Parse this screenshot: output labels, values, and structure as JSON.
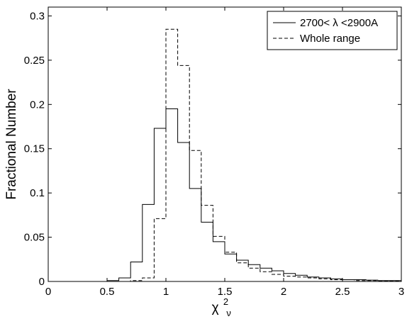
{
  "chart_data": {
    "type": "histogram",
    "title": "",
    "xlabel": "χ",
    "xlabel_sup": "2",
    "xlabel_sub": "ν",
    "ylabel": "Fractional Number",
    "xlim": [
      0,
      3
    ],
    "ylim": [
      0,
      0.31
    ],
    "xticks": [
      "0",
      "0.5",
      "1",
      "1.5",
      "2",
      "2.5",
      "3"
    ],
    "yticks": [
      "0",
      "0.05",
      "0.1",
      "0.15",
      "0.2",
      "0.25",
      "0.3"
    ],
    "grid": false,
    "legend_position": "top-right",
    "bin_edges": [
      0.1,
      0.2,
      0.3,
      0.4,
      0.5,
      0.6,
      0.7,
      0.8,
      0.9,
      1.0,
      1.1,
      1.2,
      1.3,
      1.4,
      1.5,
      1.6,
      1.7,
      1.8,
      1.9,
      2.0,
      2.1,
      2.2,
      2.3,
      2.4,
      2.5,
      2.6,
      2.7,
      2.8,
      2.9,
      3.0
    ],
    "series": [
      {
        "name": "2700< λ <2900A",
        "line_style": "solid",
        "color": "#000000",
        "values": [
          0.0,
          0.0,
          0.0,
          0.0,
          0.001,
          0.004,
          0.022,
          0.087,
          0.173,
          0.195,
          0.157,
          0.105,
          0.067,
          0.045,
          0.031,
          0.024,
          0.019,
          0.015,
          0.012,
          0.009,
          0.007,
          0.005,
          0.004,
          0.003,
          0.002,
          0.002,
          0.0015,
          0.001,
          0.001
        ]
      },
      {
        "name": "Whole range",
        "line_style": "dashed",
        "color": "#000000",
        "values": [
          0.0,
          0.0,
          0.0,
          0.0,
          0.0,
          0.0,
          0.001,
          0.004,
          0.071,
          0.285,
          0.244,
          0.148,
          0.086,
          0.051,
          0.033,
          0.021,
          0.015,
          0.011,
          0.008,
          0.006,
          0.005,
          0.004,
          0.003,
          0.002,
          0.002,
          0.001,
          0.001,
          0.0008,
          0.0005
        ]
      }
    ]
  }
}
